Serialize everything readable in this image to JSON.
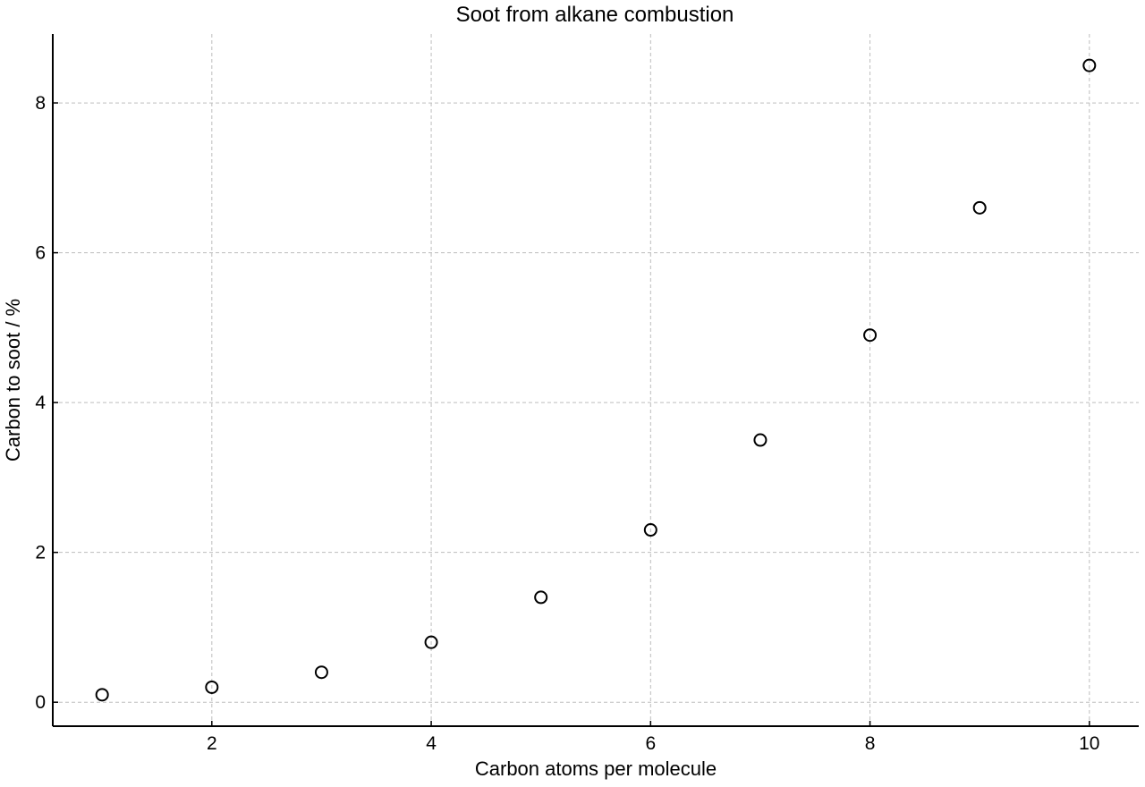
{
  "chart_data": {
    "type": "scatter",
    "title": "Soot from alkane combustion",
    "xlabel": "Carbon atoms per molecule",
    "ylabel": "Carbon to soot / %",
    "xlim": [
      0.55,
      10.45
    ],
    "ylim": [
      -0.32,
      8.92
    ],
    "xticks": [
      2,
      4,
      6,
      8,
      10
    ],
    "xtick_labels": [
      "2",
      "4",
      "6",
      "8",
      "10"
    ],
    "yticks": [
      0,
      2,
      4,
      6,
      8
    ],
    "ytick_labels": [
      "0",
      "2",
      "4",
      "6",
      "8"
    ],
    "grid": true,
    "marker": "open-circle",
    "x": [
      1,
      2,
      3,
      4,
      5,
      6,
      7,
      8,
      9,
      10
    ],
    "y": [
      0.1,
      0.2,
      0.4,
      0.8,
      1.4,
      2.3,
      3.5,
      4.9,
      6.6,
      8.5
    ]
  }
}
